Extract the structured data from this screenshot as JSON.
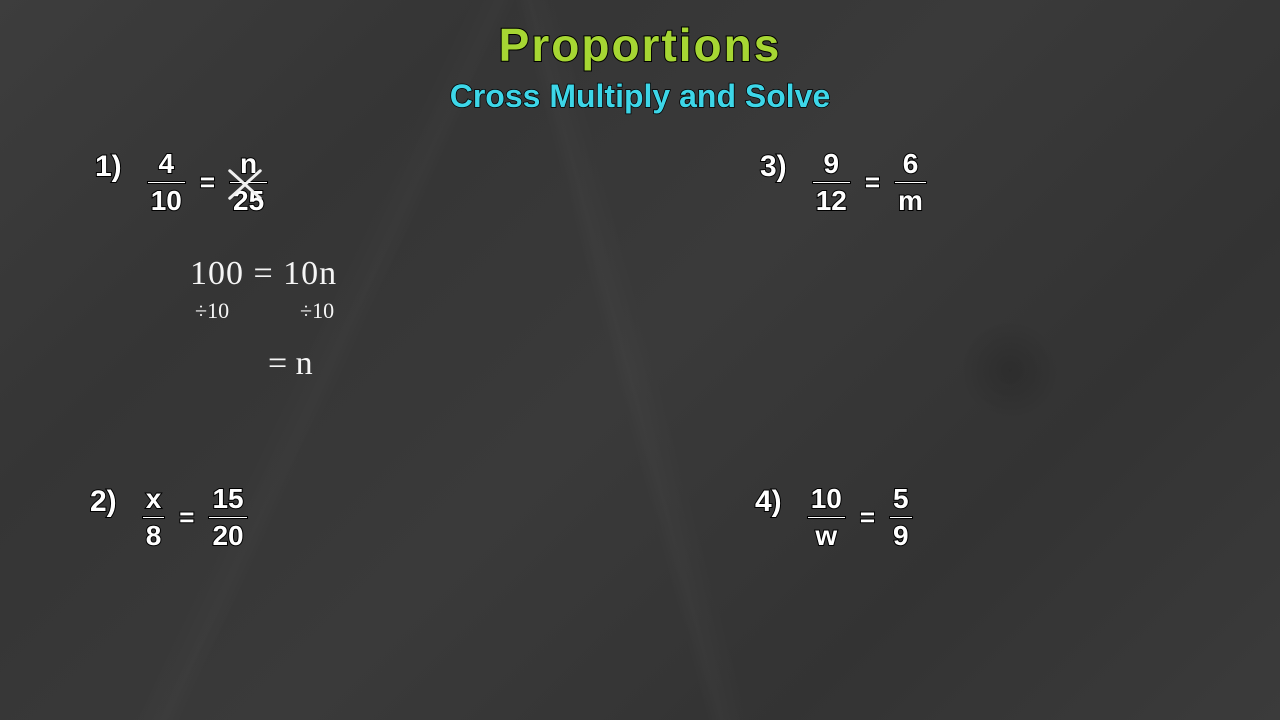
{
  "title": "Proportions",
  "subtitle": "Cross Multiply and Solve",
  "colors": {
    "title": "#a6d633",
    "subtitle": "#3dd6e8",
    "problem_text": "#ffffff",
    "chalk": "#f5f5f5",
    "background": "#3a3a3a",
    "outline": "#000000"
  },
  "typography": {
    "title_fontsize": 46,
    "subtitle_fontsize": 32,
    "problem_fontsize": 28,
    "chalk_fontsize": 34,
    "font_family": "Comic Sans MS"
  },
  "problems": [
    {
      "label": "1)",
      "lhs_num": "4",
      "lhs_den": "10",
      "rhs_num": "n",
      "rhs_den": "25",
      "has_cross": true,
      "work": {
        "line1": "100 = 10n",
        "div_left": "÷10",
        "div_right": "÷10",
        "line2": "= n"
      }
    },
    {
      "label": "2)",
      "lhs_num": "x",
      "lhs_den": "8",
      "rhs_num": "15",
      "rhs_den": "20"
    },
    {
      "label": "3)",
      "lhs_num": "9",
      "lhs_den": "12",
      "rhs_num": "6",
      "rhs_den": "m"
    },
    {
      "label": "4)",
      "lhs_num": "10",
      "lhs_den": "w",
      "rhs_num": "5",
      "rhs_den": "9"
    }
  ]
}
